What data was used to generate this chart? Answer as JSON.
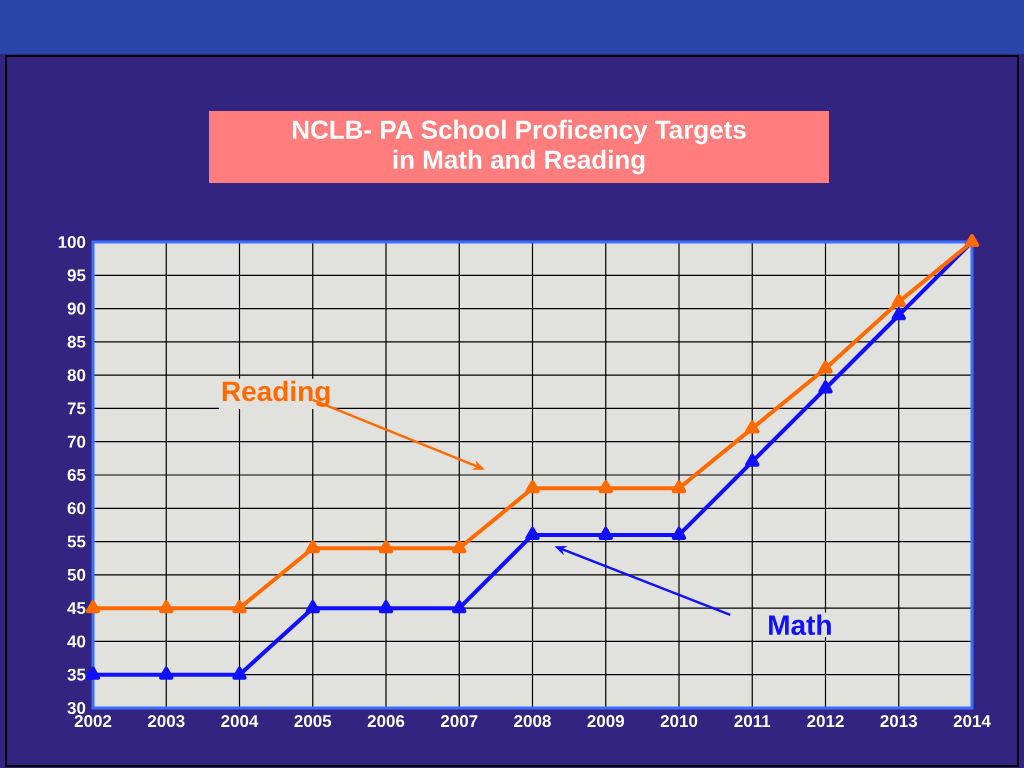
{
  "chart_data": {
    "type": "line",
    "title": "NCLB- PA School Proficency Targets\nin Math and Reading",
    "x": [
      2002,
      2003,
      2004,
      2005,
      2006,
      2007,
      2008,
      2009,
      2010,
      2011,
      2012,
      2013,
      2014
    ],
    "series": [
      {
        "name": "Reading",
        "color": "#ff6a00",
        "values": [
          45,
          45,
          45,
          54,
          54,
          54,
          63,
          63,
          63,
          72,
          81,
          91,
          100
        ]
      },
      {
        "name": "Math",
        "color": "#1010ff",
        "values": [
          35,
          35,
          35,
          45,
          45,
          45,
          56,
          56,
          56,
          67,
          78,
          89,
          100
        ]
      }
    ],
    "xlim": [
      2002,
      2014
    ],
    "ylim": [
      30,
      100
    ],
    "xticks": [
      2002,
      2003,
      2004,
      2005,
      2006,
      2007,
      2008,
      2009,
      2010,
      2011,
      2012,
      2013,
      2014
    ],
    "yticks": [
      30,
      35,
      40,
      45,
      50,
      55,
      60,
      65,
      70,
      75,
      80,
      85,
      90,
      95,
      100
    ],
    "grid": true,
    "marker": "triangle"
  }
}
